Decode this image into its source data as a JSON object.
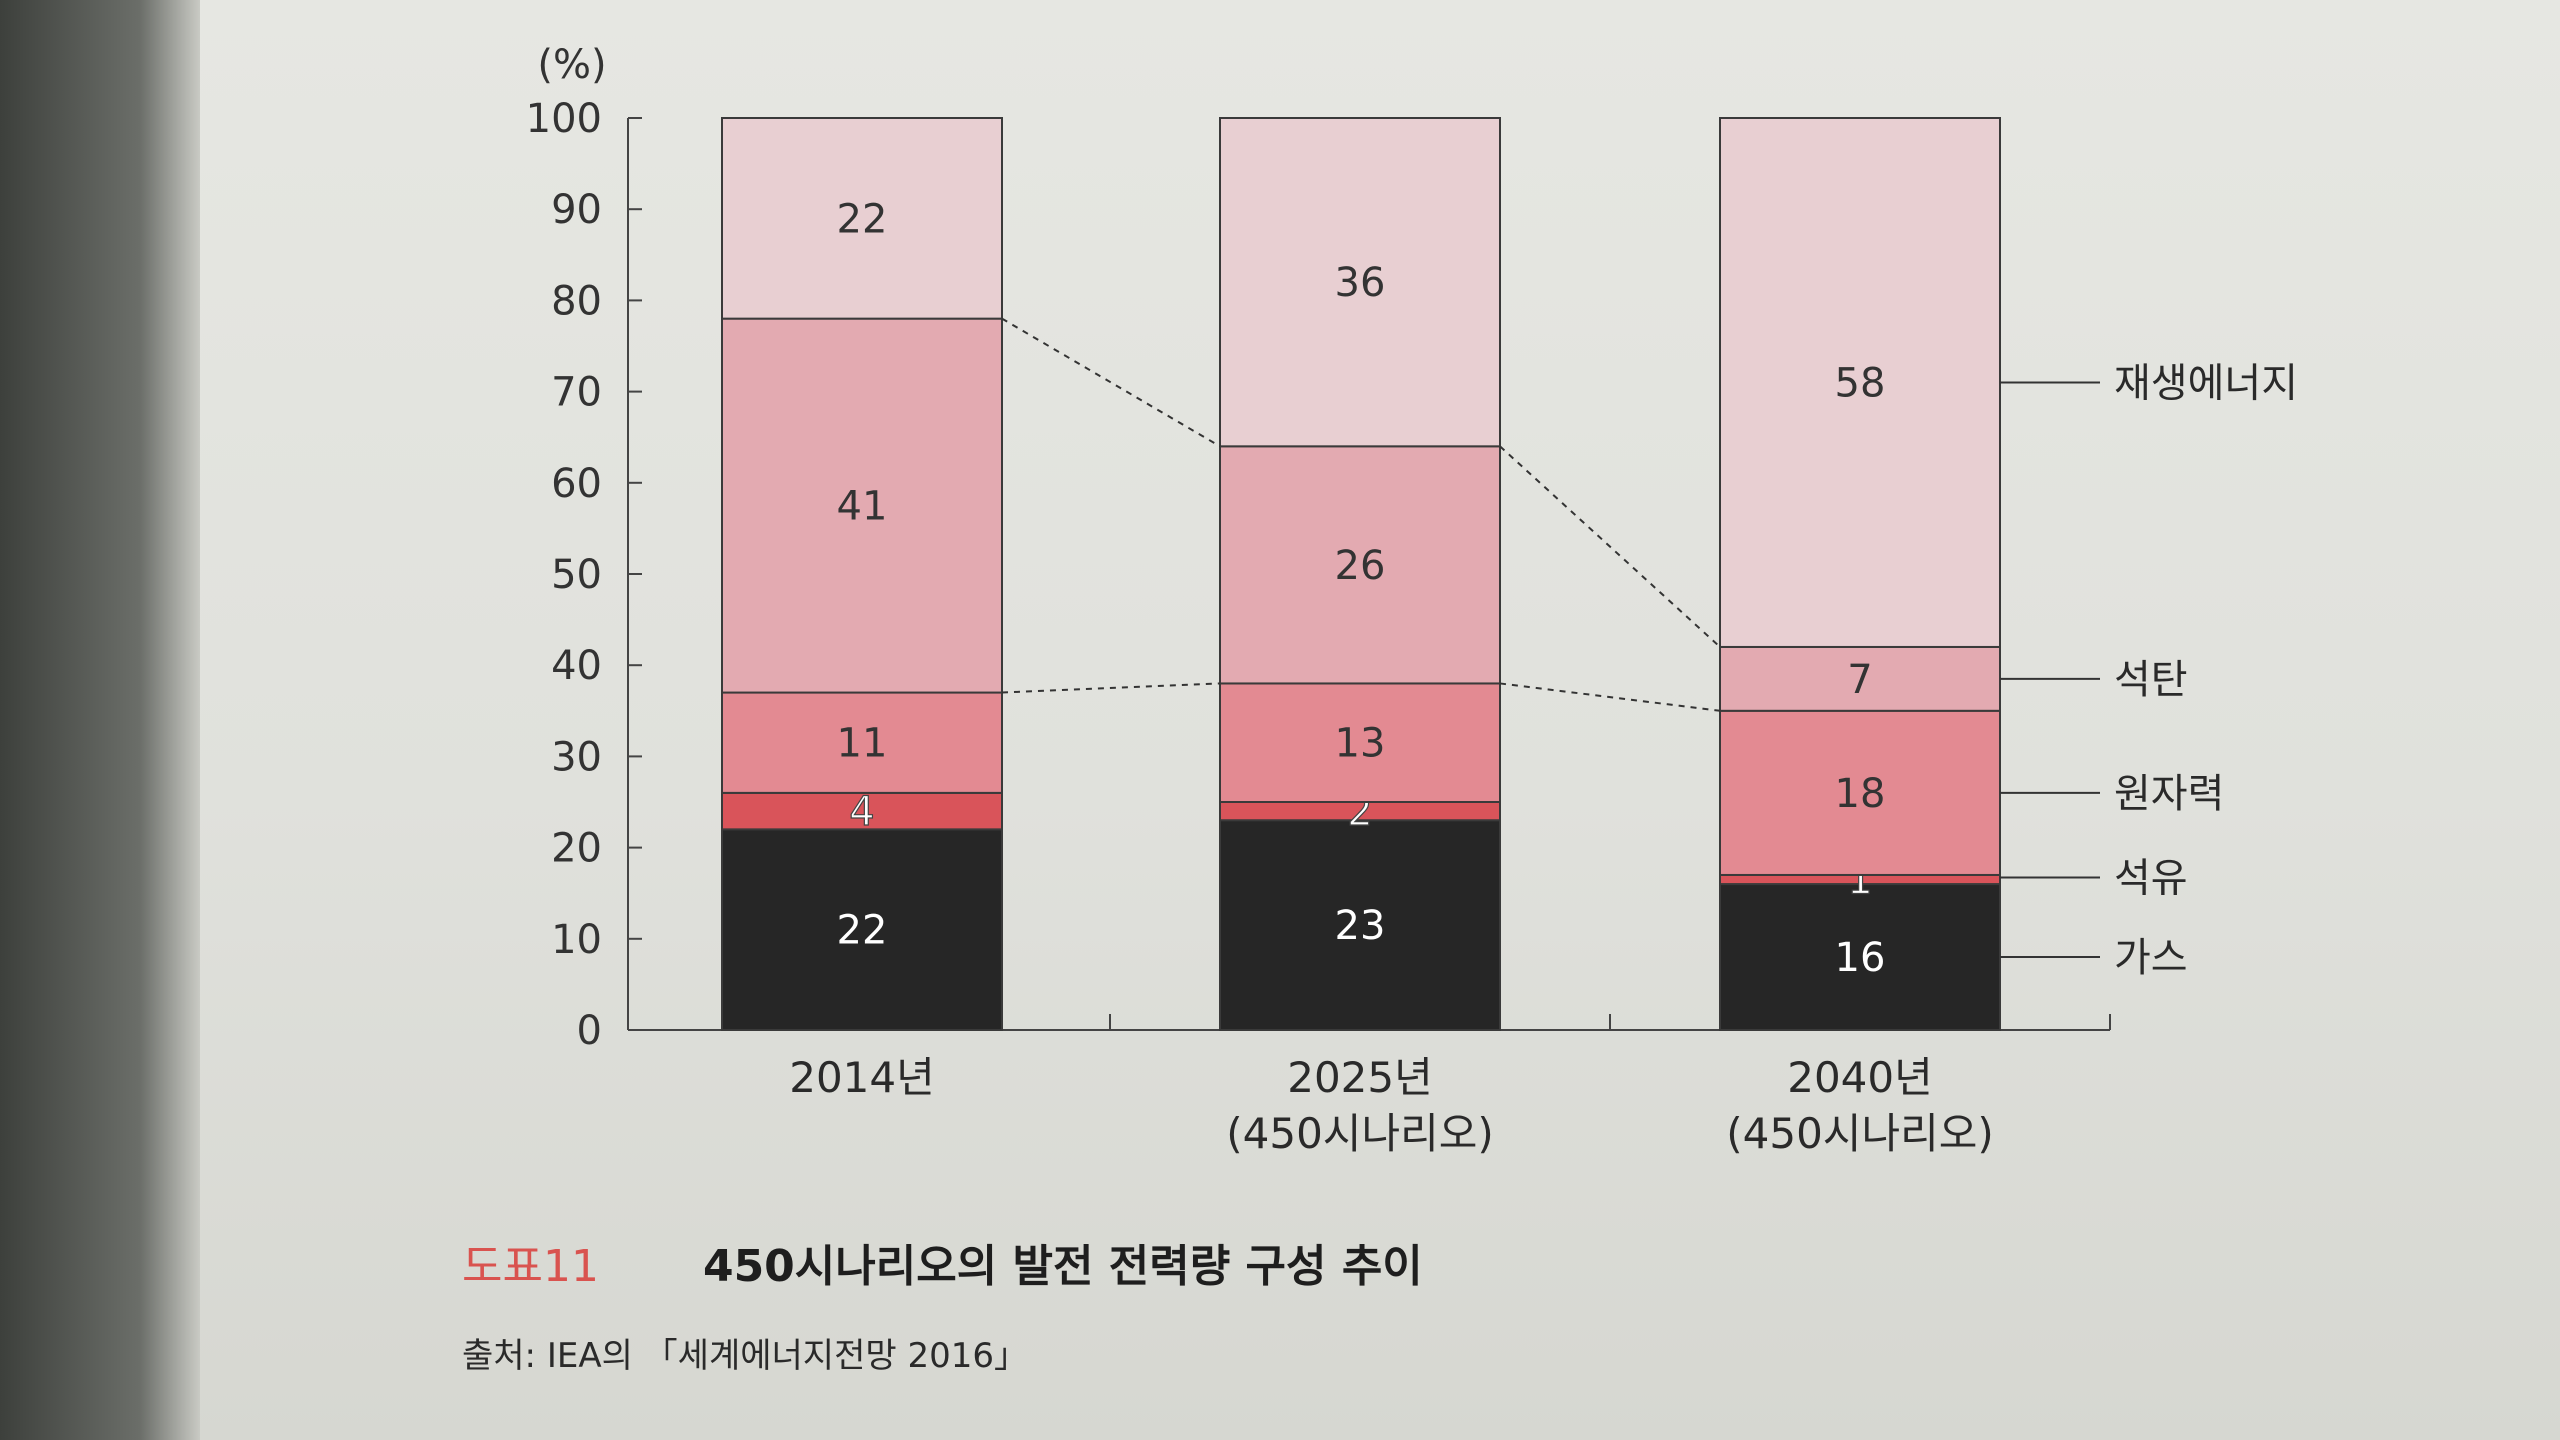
{
  "chart_data": {
    "type": "bar",
    "stacked": true,
    "y_unit": "(%)",
    "ylim": [
      0,
      100
    ],
    "yticks": [
      0,
      10,
      20,
      30,
      40,
      50,
      60,
      70,
      80,
      90,
      100
    ],
    "categories": [
      {
        "label": "2014년",
        "sublabel": ""
      },
      {
        "label": "2025년",
        "sublabel": "(450시나리오)"
      },
      {
        "label": "2040년",
        "sublabel": "(450시나리오)"
      }
    ],
    "series": [
      {
        "name": "가스",
        "values": [
          22,
          23,
          16
        ],
        "color": "#262626",
        "text_color": "#ffffff"
      },
      {
        "name": "석유",
        "values": [
          4,
          2,
          1
        ],
        "color": "#d9545a",
        "text_color": "#ffffff"
      },
      {
        "name": "원자력",
        "values": [
          11,
          13,
          18
        ],
        "color": "#e38a92",
        "text_color": "#333333"
      },
      {
        "name": "석탄",
        "values": [
          41,
          26,
          7
        ],
        "color": "#e3aab1",
        "text_color": "#333333"
      },
      {
        "name": "재생에너지",
        "values": [
          22,
          36,
          58
        ],
        "color": "#e8cfd2",
        "text_color": "#333333"
      }
    ],
    "connectors": true,
    "legend": "right"
  },
  "caption": {
    "figure_number": "도표11",
    "title": "450시나리오의 발전 전력량 구성 추이"
  },
  "source": "출처: IEA의 「세계에너지전망 2016」"
}
